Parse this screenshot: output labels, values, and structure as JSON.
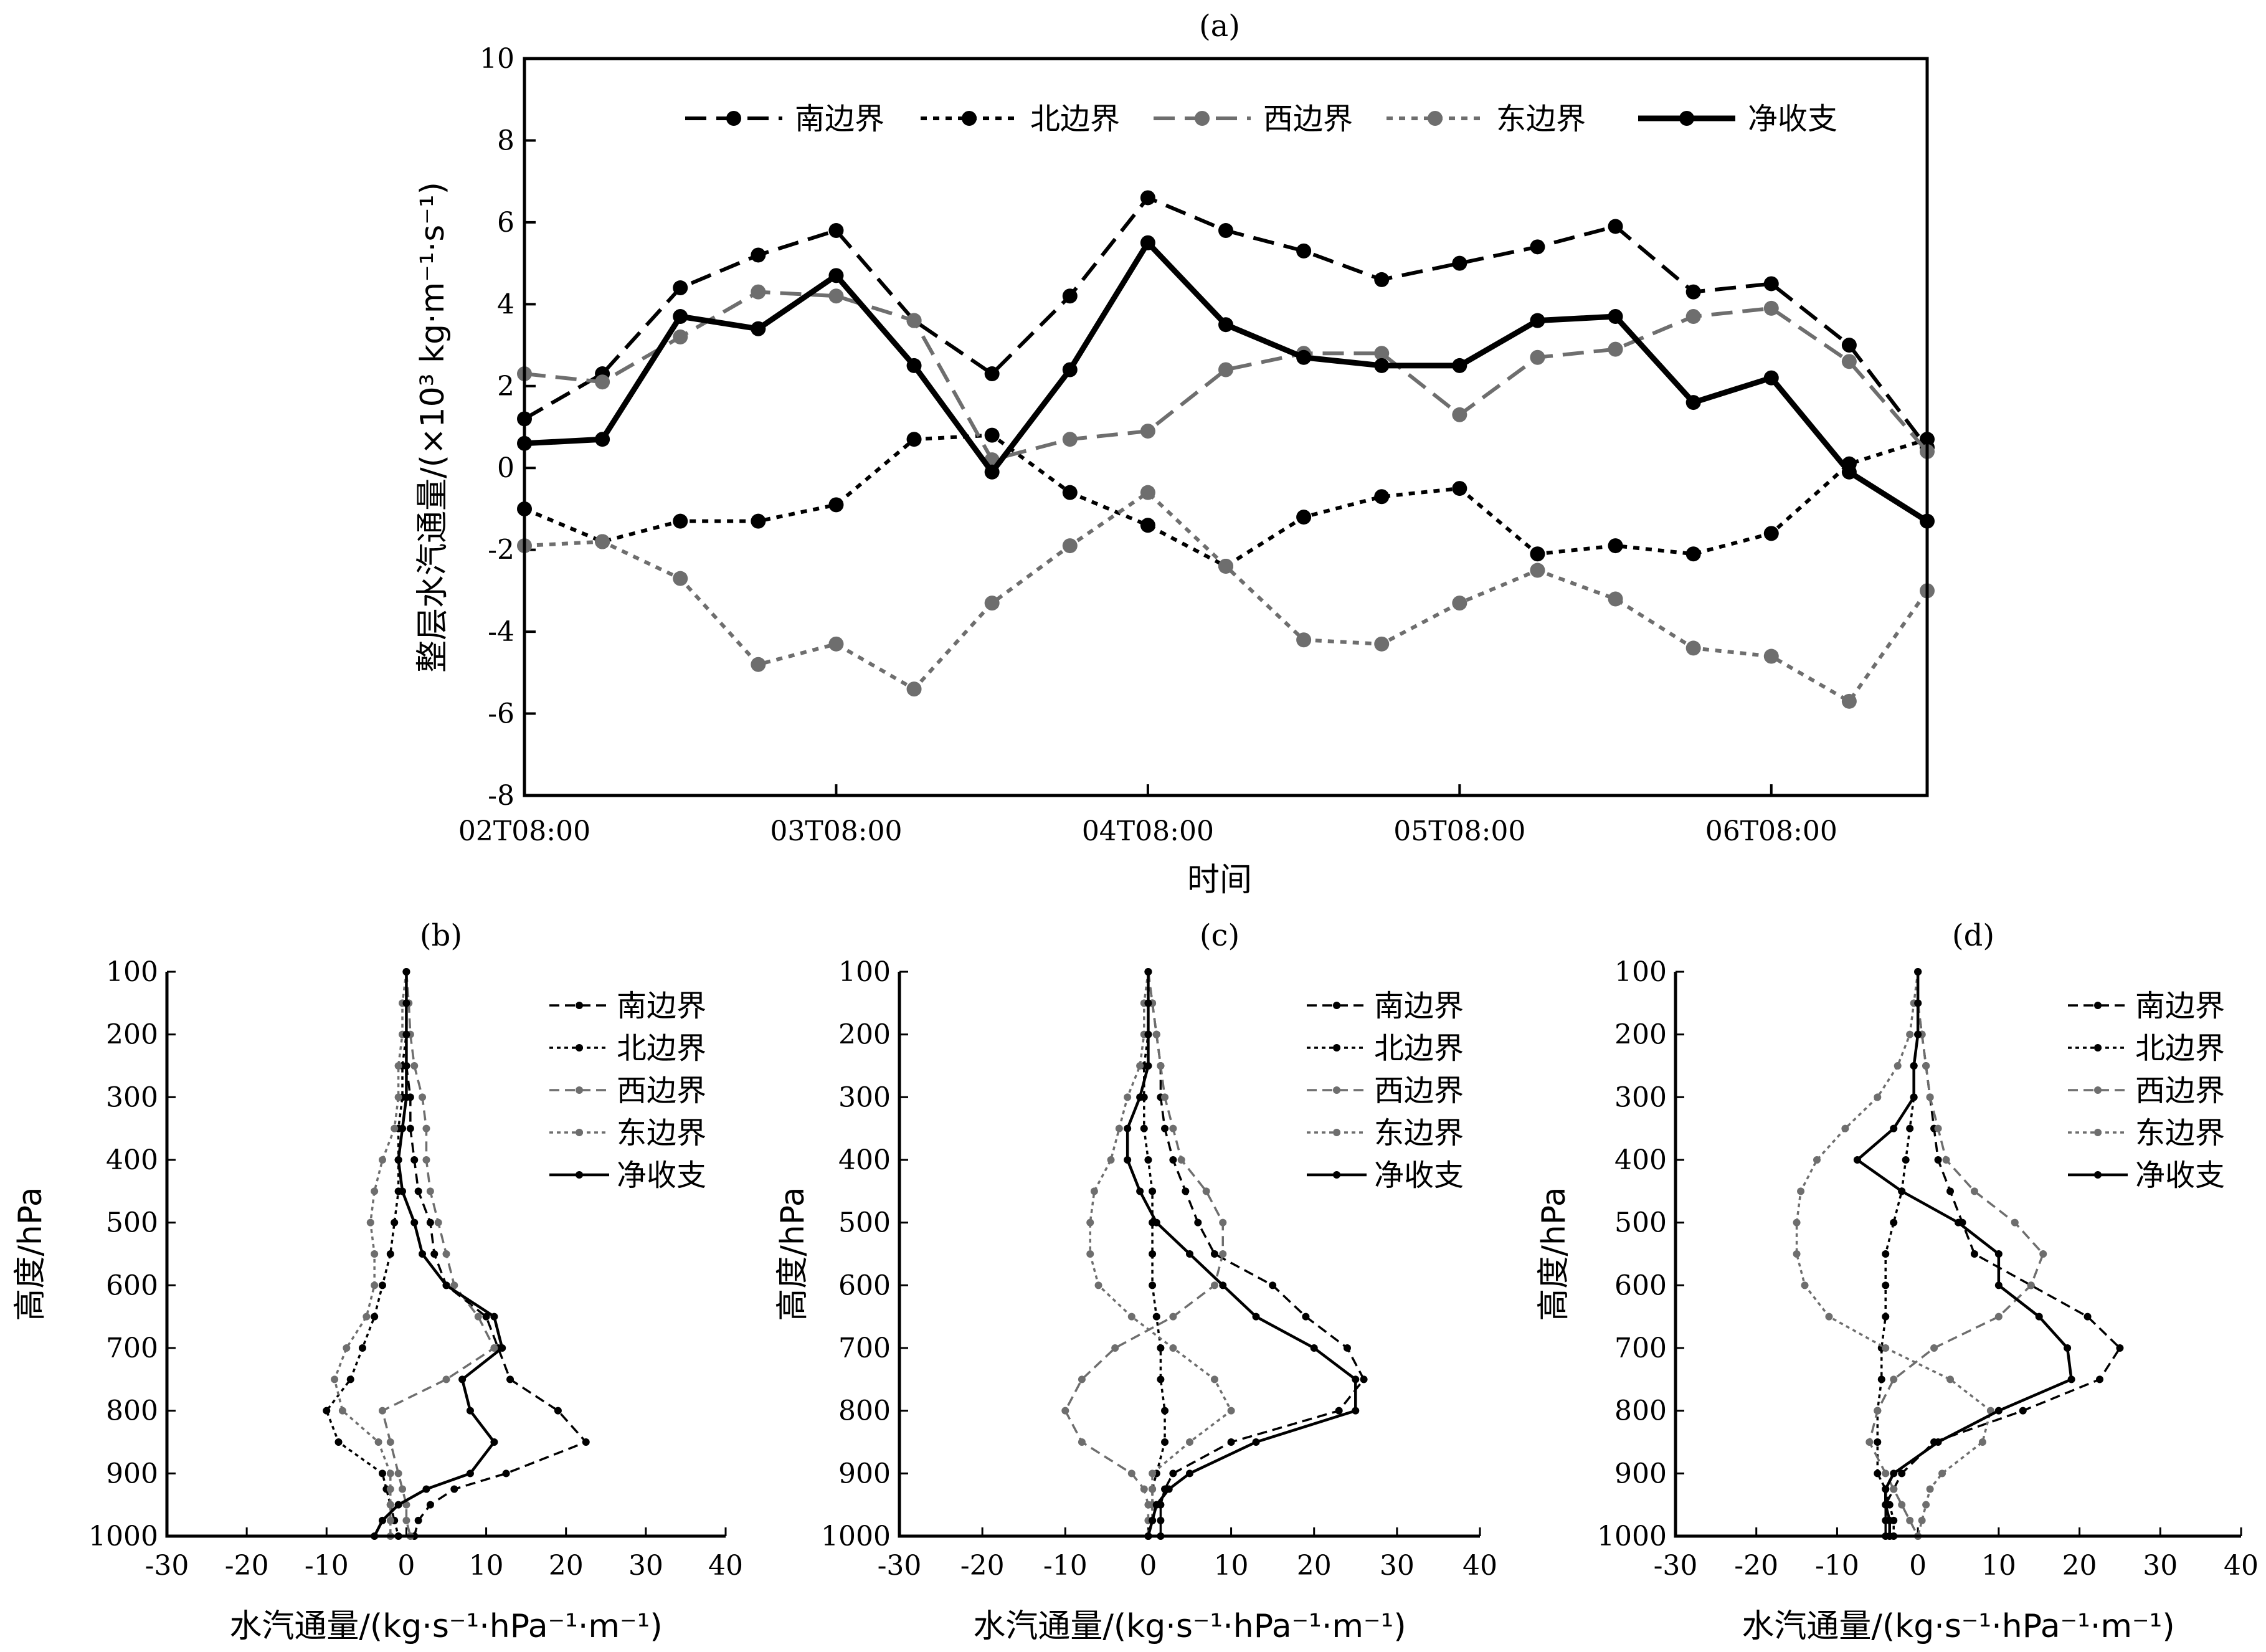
{
  "colors": {
    "black": "#000000",
    "gray": "#6e6e6e"
  },
  "legend_labels": [
    "南边界",
    "北边界",
    "西边界",
    "东边界",
    "净收支"
  ],
  "chart_data": [
    {
      "id": "a",
      "type": "line",
      "title": "(a)",
      "xlabel": "时间",
      "ylabel": "整层水汽通量/(×10³ kg·m⁻¹·s⁻¹)",
      "ylim": [
        -8,
        10
      ],
      "yticks": [
        -8,
        -6,
        -4,
        -2,
        0,
        2,
        4,
        6,
        8,
        10
      ],
      "xtick_labels": [
        "02T08:00",
        "03T08:00",
        "04T08:00",
        "05T08:00",
        "06T08:00"
      ],
      "xtick_index": [
        0,
        4,
        8,
        12,
        16
      ],
      "n_points": 19,
      "legend_position": "top",
      "series": [
        {
          "name": "南边界",
          "style": "dash-black",
          "values": [
            1.2,
            2.3,
            4.4,
            5.2,
            5.8,
            3.6,
            2.3,
            4.2,
            6.6,
            5.8,
            5.3,
            4.6,
            5.0,
            5.4,
            5.9,
            4.3,
            4.5,
            3.0,
            0.5
          ]
        },
        {
          "name": "北边界",
          "style": "dot-black",
          "values": [
            -1.0,
            -1.8,
            -1.3,
            -1.3,
            -0.9,
            0.7,
            0.8,
            -0.6,
            -1.4,
            -2.4,
            -1.2,
            -0.7,
            -0.5,
            -2.1,
            -1.9,
            -2.1,
            -1.6,
            0.1,
            0.7
          ]
        },
        {
          "name": "西边界",
          "style": "dash-gray",
          "values": [
            2.3,
            2.1,
            3.2,
            4.3,
            4.2,
            3.6,
            0.2,
            0.7,
            0.9,
            2.4,
            2.8,
            2.8,
            1.3,
            2.7,
            2.9,
            3.7,
            3.9,
            2.6,
            0.4
          ]
        },
        {
          "name": "东边界",
          "style": "dot-gray",
          "values": [
            -1.9,
            -1.8,
            -2.7,
            -4.8,
            -4.3,
            -5.4,
            -3.3,
            -1.9,
            -0.6,
            -2.4,
            -4.2,
            -4.3,
            -3.3,
            -2.5,
            -3.2,
            -4.4,
            -4.6,
            -5.7,
            -3.0
          ]
        },
        {
          "name": "净收支",
          "style": "solid-black",
          "values": [
            0.6,
            0.7,
            3.7,
            3.4,
            4.7,
            2.5,
            -0.1,
            2.4,
            5.5,
            3.5,
            2.7,
            2.5,
            2.5,
            3.6,
            3.7,
            1.6,
            2.2,
            -0.1,
            -1.3
          ]
        }
      ]
    },
    {
      "id": "b",
      "type": "line",
      "title": "(b)",
      "xlabel": "水汽通量/(kg·s⁻¹·hPa⁻¹·m⁻¹)",
      "ylabel": "高度/hPa",
      "xlim": [
        -30,
        40
      ],
      "xticks": [
        -30,
        -20,
        -10,
        0,
        10,
        20,
        30,
        40
      ],
      "ylim": [
        100,
        1000
      ],
      "yticks": [
        100,
        200,
        300,
        400,
        500,
        600,
        700,
        800,
        900,
        1000
      ],
      "legend_position": "top-right",
      "levels": [
        100,
        150,
        200,
        250,
        300,
        350,
        400,
        450,
        500,
        550,
        600,
        650,
        700,
        750,
        800,
        850,
        900,
        925,
        950,
        975,
        1000
      ],
      "series": [
        {
          "name": "南边界",
          "style": "dash-black",
          "values": [
            0,
            0,
            0,
            0,
            0.5,
            0.5,
            1,
            1.5,
            3,
            3.5,
            5,
            10,
            11.5,
            13,
            19,
            22.5,
            12.5,
            6,
            3,
            1.5,
            1
          ]
        },
        {
          "name": "北边界",
          "style": "dot-black",
          "values": [
            0,
            0,
            0,
            -0.5,
            -0.5,
            -1,
            -1,
            -1,
            -1.5,
            -2,
            -3,
            -4,
            -5.5,
            -7,
            -10,
            -8.5,
            -3,
            -2.5,
            -2,
            -1.5,
            -1
          ]
        },
        {
          "name": "西边界",
          "style": "dash-gray",
          "values": [
            0,
            0.3,
            0.5,
            1,
            2,
            2.5,
            2.5,
            3,
            4,
            5,
            6,
            9,
            11,
            5,
            -3,
            -2,
            -1,
            -0.5,
            0,
            0,
            0.5
          ]
        },
        {
          "name": "东边界",
          "style": "dot-gray",
          "values": [
            0,
            -0.5,
            -0.5,
            -1,
            -1,
            -1.5,
            -3,
            -4,
            -4.5,
            -4,
            -4,
            -5,
            -7.5,
            -9,
            -8,
            -3.5,
            -2,
            -2,
            -2,
            -2,
            -2
          ]
        },
        {
          "name": "净收支",
          "style": "solid-black",
          "values": [
            0,
            0,
            0,
            0,
            0,
            -0.5,
            -1,
            -0.5,
            1,
            2,
            5,
            11,
            12,
            7,
            8,
            11,
            8,
            2.5,
            -1,
            -3,
            -4
          ]
        }
      ]
    },
    {
      "id": "c",
      "type": "line",
      "title": "(c)",
      "xlabel": "水汽通量/(kg·s⁻¹·hPa⁻¹·m⁻¹)",
      "ylabel": "高度/hPa",
      "xlim": [
        -30,
        40
      ],
      "xticks": [
        -30,
        -20,
        -10,
        0,
        10,
        20,
        30,
        40
      ],
      "ylim": [
        100,
        1000
      ],
      "yticks": [
        100,
        200,
        300,
        400,
        500,
        600,
        700,
        800,
        900,
        1000
      ],
      "legend_position": "top-right",
      "levels": [
        100,
        150,
        200,
        250,
        300,
        350,
        400,
        450,
        500,
        550,
        600,
        650,
        700,
        750,
        800,
        850,
        900,
        925,
        950,
        975,
        1000
      ],
      "series": [
        {
          "name": "南边界",
          "style": "dash-black",
          "values": [
            0,
            0.5,
            1,
            1.5,
            1.5,
            2,
            3,
            4.5,
            6,
            8,
            15,
            19,
            24,
            26,
            23,
            10,
            3,
            2,
            1.5,
            1.5,
            1.5
          ]
        },
        {
          "name": "北边界",
          "style": "dot-black",
          "values": [
            0,
            0,
            0,
            -0.5,
            -0.5,
            -0.5,
            0,
            0.5,
            0.5,
            0.5,
            0.5,
            1,
            1.5,
            1.5,
            2,
            2,
            1,
            0.5,
            0.5,
            0.5,
            0
          ]
        },
        {
          "name": "西边界",
          "style": "dash-gray",
          "values": [
            0,
            0.5,
            1,
            1.5,
            2,
            3,
            4,
            7,
            9,
            9,
            8,
            3,
            -4,
            -8,
            -10,
            -8,
            -2,
            -0.5,
            0,
            0,
            0
          ]
        },
        {
          "name": "东边界",
          "style": "dot-gray",
          "values": [
            0,
            -0.5,
            -0.5,
            -1,
            -2.5,
            -3.5,
            -4.5,
            -6.5,
            -7,
            -7,
            -6,
            -2,
            3,
            8,
            10,
            5,
            0.5,
            0.5,
            0.5,
            0.5,
            0
          ]
        },
        {
          "name": "净收支",
          "style": "solid-black",
          "values": [
            0,
            0,
            0,
            0,
            -1,
            -2.5,
            -2.5,
            -1,
            1,
            5,
            9,
            13,
            20,
            25,
            25,
            13,
            5,
            2.5,
            1,
            0.5,
            0
          ]
        }
      ]
    },
    {
      "id": "d",
      "type": "line",
      "title": "(d)",
      "xlabel": "水汽通量/(kg·s⁻¹·hPa⁻¹·m⁻¹)",
      "ylabel": "高度/hPa",
      "xlim": [
        -30,
        40
      ],
      "xticks": [
        -30,
        -20,
        -10,
        0,
        10,
        20,
        30,
        40
      ],
      "ylim": [
        100,
        1000
      ],
      "yticks": [
        100,
        200,
        300,
        400,
        500,
        600,
        700,
        800,
        900,
        1000
      ],
      "legend_position": "top-right",
      "levels": [
        100,
        150,
        200,
        250,
        300,
        350,
        400,
        450,
        500,
        550,
        600,
        650,
        700,
        750,
        800,
        850,
        900,
        925,
        950,
        975,
        1000
      ],
      "series": [
        {
          "name": "南边界",
          "style": "dash-black",
          "values": [
            0,
            0,
            0.5,
            1,
            1.5,
            2,
            2.5,
            4,
            5.5,
            7,
            14,
            21,
            25,
            22.5,
            13,
            2,
            -2,
            -3,
            -4,
            -4,
            -4
          ]
        },
        {
          "name": "北边界",
          "style": "dot-black",
          "values": [
            0,
            0,
            0,
            -0.5,
            -0.5,
            -1,
            -1.5,
            -2,
            -3,
            -4,
            -4,
            -4,
            -4.5,
            -4.5,
            -5,
            -5,
            -5,
            -4,
            -3.5,
            -3,
            -3
          ]
        },
        {
          "name": "西边界",
          "style": "dash-gray",
          "values": [
            0,
            0,
            0.5,
            1,
            1.5,
            2.5,
            3.5,
            7,
            12,
            15.5,
            14,
            10,
            2,
            -3,
            -5,
            -6,
            -4,
            -3,
            -2,
            -1,
            0
          ]
        },
        {
          "name": "东边界",
          "style": "dot-gray",
          "values": [
            0,
            -0.5,
            -1,
            -2.5,
            -5,
            -9,
            -12.5,
            -14.5,
            -15,
            -15,
            -14,
            -11,
            -4,
            4,
            9,
            8,
            3,
            1.5,
            1,
            0.5,
            0
          ]
        },
        {
          "name": "净收支",
          "style": "solid-black",
          "values": [
            0,
            0,
            0,
            -0.5,
            -0.5,
            -3,
            -7.5,
            -2,
            5,
            10,
            10,
            15,
            18.5,
            19,
            10,
            2.5,
            -3,
            -4,
            -4,
            -3.5,
            -3.5
          ]
        }
      ]
    }
  ]
}
